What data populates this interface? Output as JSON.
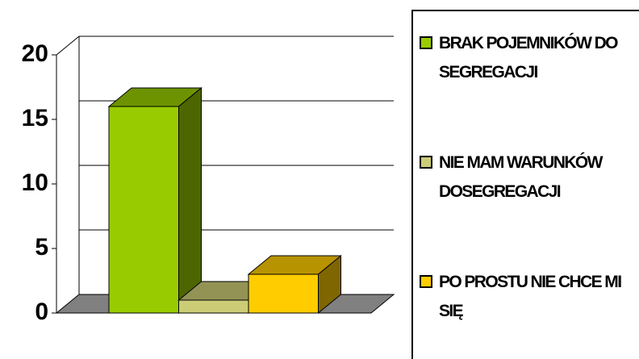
{
  "chart_data": {
    "type": "bar3d",
    "categories": [
      "BRAK POJEMNIKÓW DO SEGREGACJI",
      "NIE MAM WARUNKÓW DOSEGREGACJI",
      "PO PROSTU NIE CHCE MI SIĘ"
    ],
    "values": [
      16,
      1,
      3
    ],
    "colors": [
      "#99cc00",
      "#cccc77",
      "#ffcc00"
    ],
    "ylim": [
      0,
      20
    ],
    "yticks": [
      0,
      5,
      10,
      15,
      20
    ],
    "grid": true
  }
}
